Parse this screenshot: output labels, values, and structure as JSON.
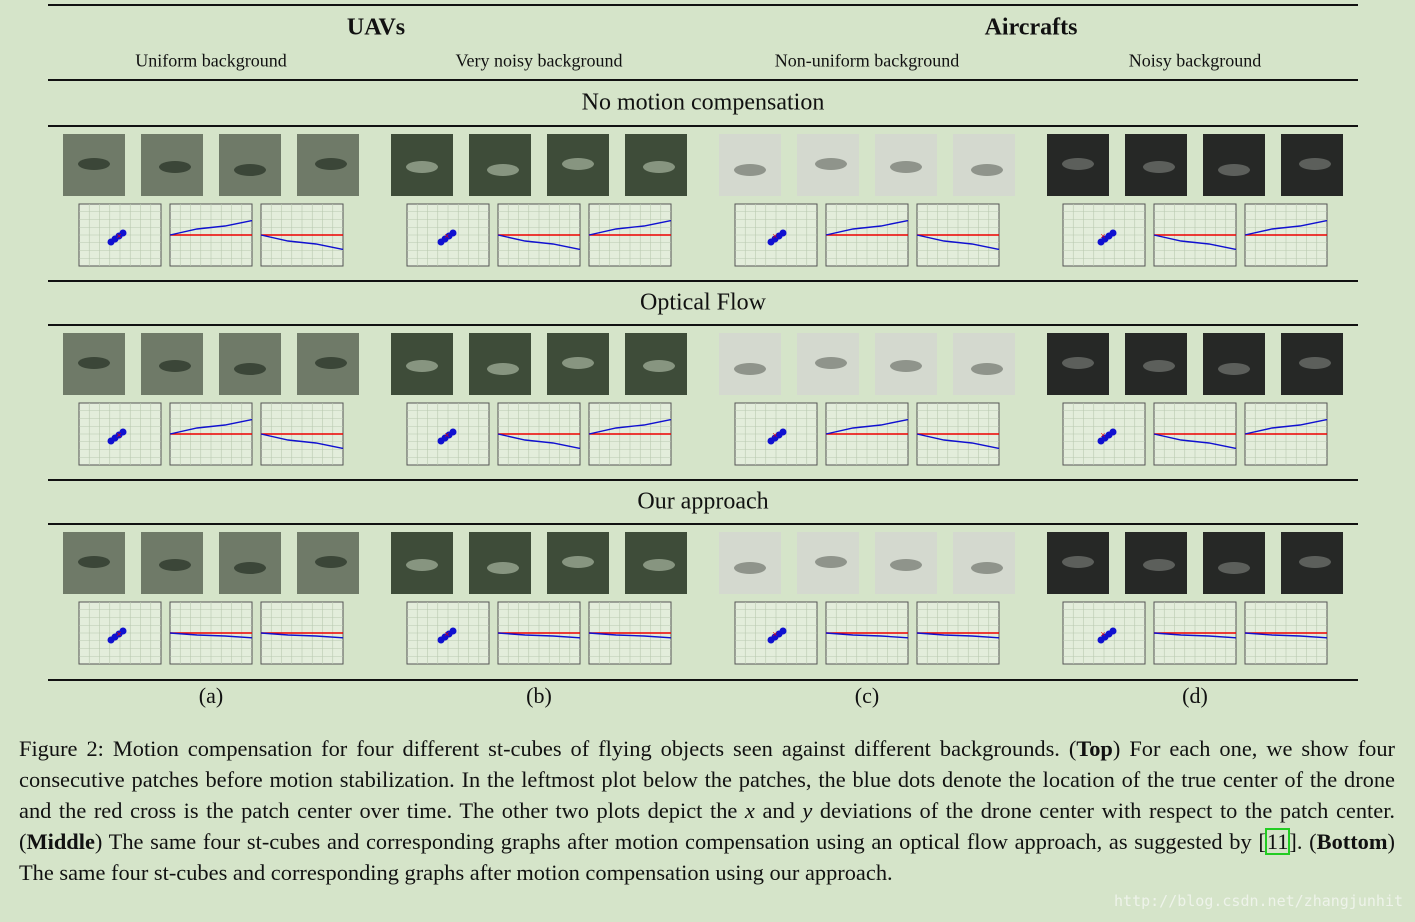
{
  "figure": {
    "groups": [
      {
        "title": "UAVs"
      },
      {
        "title": "Aircrafts"
      }
    ],
    "backgrounds": [
      "Uniform background",
      "Very noisy background",
      "Non-uniform background",
      "Noisy background"
    ],
    "sections": [
      "No motion compensation",
      "Optical Flow",
      "Our approach"
    ],
    "panel_labels": [
      "(a)",
      "(b)",
      "(c)",
      "(d)"
    ]
  },
  "caption": [
    "Figure 2: Motion compensation for four different st-cubes of flying objects seen against different backgrounds. (",
    "Top",
    ") For each one, we show four consecutive patches before motion stabilization. In the leftmost plot below the patches, the blue dots denote the location of the true center of the drone and the red cross is the patch center over time. The other two plots depict the ",
    "x",
    " and ",
    "y",
    " deviations of the drone center with respect to the patch center. (",
    "Middle",
    ") The same four st-cubes and corresponding graphs after motion compensation using an optical flow approach, as suggested by ",
    "[",
    "11",
    "]. (",
    "Bottom",
    ") The same four st-cubes and corresponding graphs after motion compensation using our approach."
  ],
  "watermark": "http://blog.csdn.net/zhangjunhit"
}
